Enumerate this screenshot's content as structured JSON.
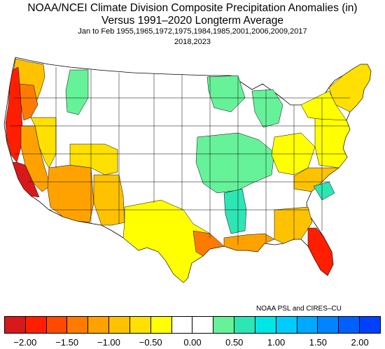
{
  "title": {
    "line1": "NOAA/NCEI Climate Division Composite Precipitation Anomalies (in)",
    "line2": "Versus 1991–2020 Longterm Average",
    "line3": "Jan to Feb   1955,1965,1972,1975,1984,1985,2001,2006,2009,2017",
    "line4": "2018,2023"
  },
  "credit": "NOAA PSL and CIRES–CU",
  "legend": {
    "colors": [
      "#d7191c",
      "#ff1f00",
      "#ff4a00",
      "#ff7a00",
      "#ffa200",
      "#ffc200",
      "#ffe000",
      "#ffff00",
      "#ffffff",
      "#ffffff",
      "#66f299",
      "#2de6b3",
      "#00e6e6",
      "#00ccff",
      "#00a8ff",
      "#0084ff",
      "#0060ff",
      "#0040ff"
    ],
    "ticks": [
      "−2.00",
      "−1.50",
      "−1.00",
      "−0.50",
      "0.00",
      "0.50",
      "1.00",
      "1.50",
      "2.00"
    ]
  },
  "map": {
    "description_regions": [
      {
        "name": "west-coast-strip",
        "color": "#ff1f00"
      },
      {
        "name": "california-coast",
        "color": "#ff4a00"
      },
      {
        "name": "nevada-interior",
        "color": "#ffc200"
      },
      {
        "name": "southwest",
        "color": "#ffa200"
      },
      {
        "name": "texas-central",
        "color": "#ffff00"
      },
      {
        "name": "gulf-coast",
        "color": "#ff7a00"
      },
      {
        "name": "florida-south",
        "color": "#ff1f00"
      },
      {
        "name": "ohio-valley",
        "color": "#66f299"
      },
      {
        "name": "great-lakes",
        "color": "#66f299"
      },
      {
        "name": "northeast",
        "color": "#ffff00"
      }
    ]
  }
}
